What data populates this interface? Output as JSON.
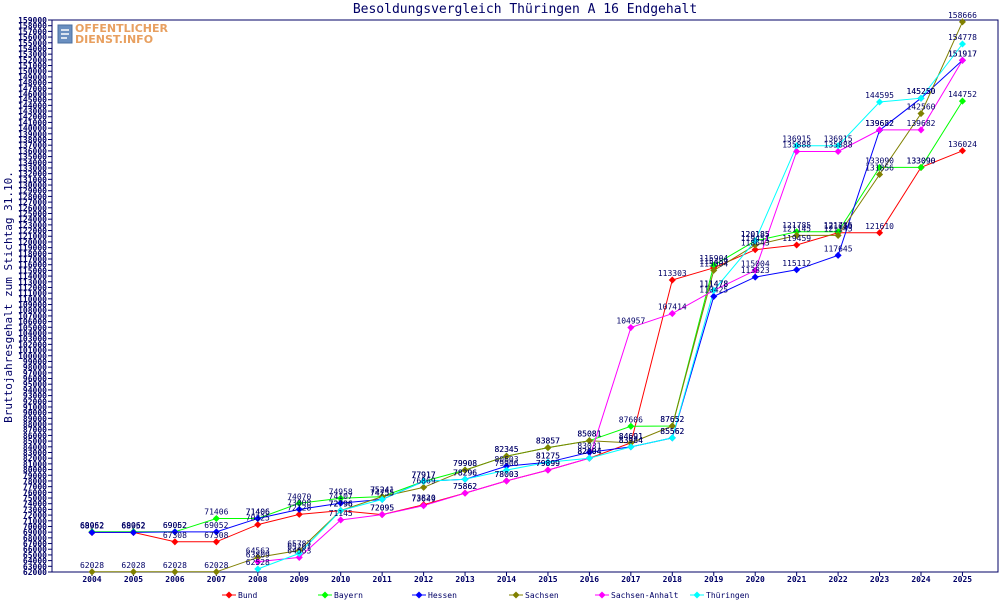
{
  "logo": {
    "line1": "OFFENTLICHER",
    "line2": "DIENST.INFO"
  },
  "chart_data": {
    "type": "line",
    "title": "Besoldungsvergleich Thüringen A 16 Endgehalt",
    "xlabel": "",
    "ylabel": "Bruttojahresgehalt zum Stichtag 31.10.",
    "ylim": [
      62000,
      159000
    ],
    "ytick_step": 1000,
    "grid": false,
    "legend_position": "bottom",
    "categories": [
      "2004",
      "2005",
      "2006",
      "2007",
      "2008",
      "2009",
      "2010",
      "2011",
      "2012",
      "2013",
      "2014",
      "2015",
      "2016",
      "2017",
      "2018",
      "2019",
      "2020",
      "2021",
      "2022",
      "2023",
      "2024",
      "2025"
    ],
    "series": [
      {
        "name": "Bund",
        "color": "#ff0000",
        "values": [
          68952,
          68952,
          67308,
          67308,
          70325,
          72128,
          72796,
          72095,
          73820,
          75862,
          78003,
          79899,
          82004,
          84691,
          113303,
          115459,
          118643,
          119459,
          121610,
          121610,
          133090,
          136024
        ]
      },
      {
        "name": "Bayern",
        "color": "#00ff00",
        "values": [
          69062,
          69062,
          69062,
          71406,
          71406,
          74070,
          74958,
          75241,
          77917,
          79908,
          82345,
          83857,
          85081,
          87606,
          87652,
          115904,
          120185,
          121785,
          121785,
          133090,
          133090,
          144752
        ]
      },
      {
        "name": "Hessen",
        "color": "#0000ff",
        "values": [
          68952,
          68952,
          69052,
          69052,
          71406,
          73008,
          74107,
          74755,
          77917,
          78296,
          80603,
          81275,
          83031,
          83984,
          85562,
          110425,
          113823,
          115112,
          117645,
          139632,
          145250,
          151917
        ]
      },
      {
        "name": "Sachsen",
        "color": "#808000",
        "values": [
          62028,
          62028,
          62028,
          62028,
          64563,
          65787,
          72796,
          75241,
          76869,
          79908,
          82345,
          83857,
          85081,
          84691,
          87652,
          115004,
          119451,
          121145,
          121145,
          131856,
          142560,
          158666
        ]
      },
      {
        "name": "Sachsen-Anhalt",
        "color": "#ff00ff",
        "values": [
          null,
          null,
          null,
          null,
          63809,
          64563,
          71145,
          72095,
          73649,
          75862,
          78003,
          79899,
          82004,
          104957,
          107414,
          111478,
          115004,
          135888,
          135888,
          139682,
          139682,
          151917
        ]
      },
      {
        "name": "Thüringen",
        "color": "#00ffff",
        "values": [
          null,
          null,
          null,
          null,
          62528,
          65267,
          72796,
          74755,
          77917,
          78296,
          79906,
          81275,
          82004,
          83984,
          85562,
          111478,
          120185,
          136915,
          136915,
          144595,
          145250,
          154778
        ]
      }
    ],
    "x_labels_font_size": 8
  }
}
